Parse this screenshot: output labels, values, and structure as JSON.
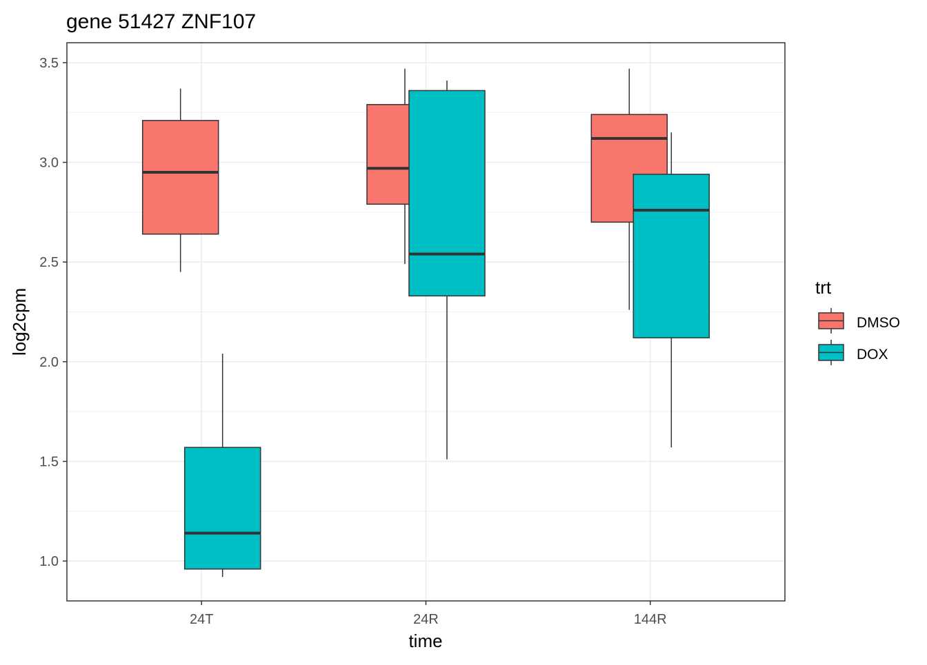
{
  "chart_data": {
    "type": "boxplot",
    "title": "gene 51427 ZNF107",
    "xlabel": "time",
    "ylabel": "log2cpm",
    "categories": [
      "24T",
      "24R",
      "144R"
    ],
    "ylim": [
      0.8,
      3.6
    ],
    "yticks": [
      1.0,
      1.5,
      2.0,
      2.5,
      3.0,
      3.5
    ],
    "ytick_labels": [
      "1.0",
      "1.5",
      "2.0",
      "2.5",
      "3.0",
      "3.5"
    ],
    "grid": true,
    "legend": {
      "title": "trt",
      "placement": "right",
      "entries": [
        "DMSO",
        "DOX"
      ]
    },
    "series": [
      {
        "name": "DMSO",
        "color": "#F8766D",
        "boxes": [
          {
            "min": 2.45,
            "q1": 2.64,
            "median": 2.95,
            "q3": 3.21,
            "max": 3.37
          },
          {
            "min": 2.49,
            "q1": 2.79,
            "median": 2.97,
            "q3": 3.29,
            "max": 3.47
          },
          {
            "min": 2.26,
            "q1": 2.7,
            "median": 3.12,
            "q3": 3.24,
            "max": 3.47
          }
        ]
      },
      {
        "name": "DOX",
        "color": "#00BFC4",
        "boxes": [
          {
            "min": 0.92,
            "q1": 0.96,
            "median": 1.14,
            "q3": 1.57,
            "max": 2.04
          },
          {
            "min": 1.51,
            "q1": 2.33,
            "median": 2.54,
            "q3": 3.36,
            "max": 3.41
          },
          {
            "min": 1.57,
            "q1": 2.12,
            "median": 2.76,
            "q3": 2.94,
            "max": 3.15
          }
        ]
      }
    ]
  }
}
